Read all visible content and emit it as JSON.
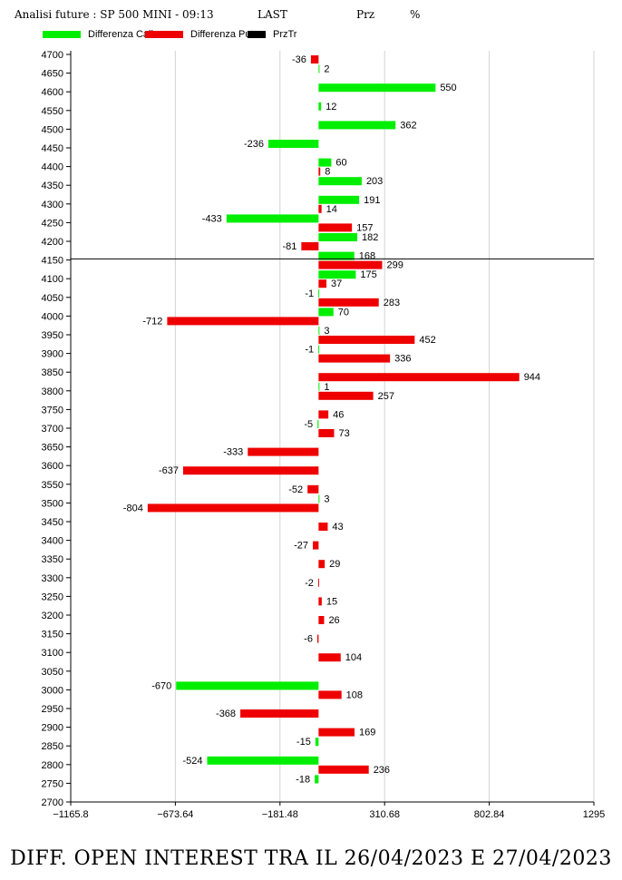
{
  "header": {
    "title": "Analisi future : SP 500 MINI - 09:13",
    "col_last": "LAST",
    "col_prz": "Prz",
    "col_pct": "%"
  },
  "legend": [
    {
      "label": "Differenza Call",
      "color": "#00ee00"
    },
    {
      "label": "Differenza Put",
      "color": "#ee0000"
    },
    {
      "label": "PrzTr",
      "color": "#000000"
    }
  ],
  "footer": {
    "title": "DIFF. OPEN INTEREST TRA IL 26/04/2023 E 27/04/2023"
  },
  "chart_data": {
    "type": "bar",
    "orientation": "horizontal",
    "categories": [
      4700,
      4650,
      4600,
      4550,
      4500,
      4450,
      4400,
      4350,
      4300,
      4250,
      4200,
      4150,
      4100,
      4050,
      4000,
      3950,
      3900,
      3850,
      3800,
      3750,
      3700,
      3650,
      3600,
      3550,
      3500,
      3450,
      3400,
      3350,
      3300,
      3250,
      3200,
      3150,
      3100,
      3050,
      3000,
      2950,
      2900,
      2850,
      2800,
      2750,
      2700
    ],
    "series": [
      {
        "name": "Differenza Call",
        "color": "#00ee00",
        "values": [
          null,
          2,
          550,
          12,
          362,
          -236,
          60,
          203,
          191,
          -433,
          182,
          168,
          175,
          -1,
          70,
          3,
          -1,
          null,
          1,
          null,
          -5,
          null,
          null,
          null,
          3,
          null,
          null,
          null,
          null,
          null,
          null,
          null,
          null,
          null,
          -670,
          null,
          null,
          -15,
          -524,
          -18,
          null
        ]
      },
      {
        "name": "Differenza Put",
        "color": "#ee0000",
        "values": [
          -36,
          null,
          null,
          null,
          null,
          null,
          8,
          null,
          14,
          157,
          -81,
          299,
          37,
          283,
          -712,
          452,
          336,
          944,
          257,
          46,
          73,
          -333,
          -637,
          -52,
          -804,
          43,
          -27,
          29,
          -2,
          15,
          26,
          -6,
          104,
          null,
          108,
          -368,
          169,
          null,
          236,
          null,
          null
        ]
      }
    ],
    "price_line": {
      "name": "PrzTr",
      "value": 4153
    },
    "x_ticks": [
      "−1165.8",
      "−673.64",
      "−181.48",
      "310.68",
      "802.84",
      "1295"
    ],
    "xlim": [
      -1165.8,
      1295
    ],
    "grid": true
  },
  "colors": {
    "call": "#00ee00",
    "put": "#ee0000",
    "price_line": "#000000",
    "grid": "#d3d3d3"
  }
}
